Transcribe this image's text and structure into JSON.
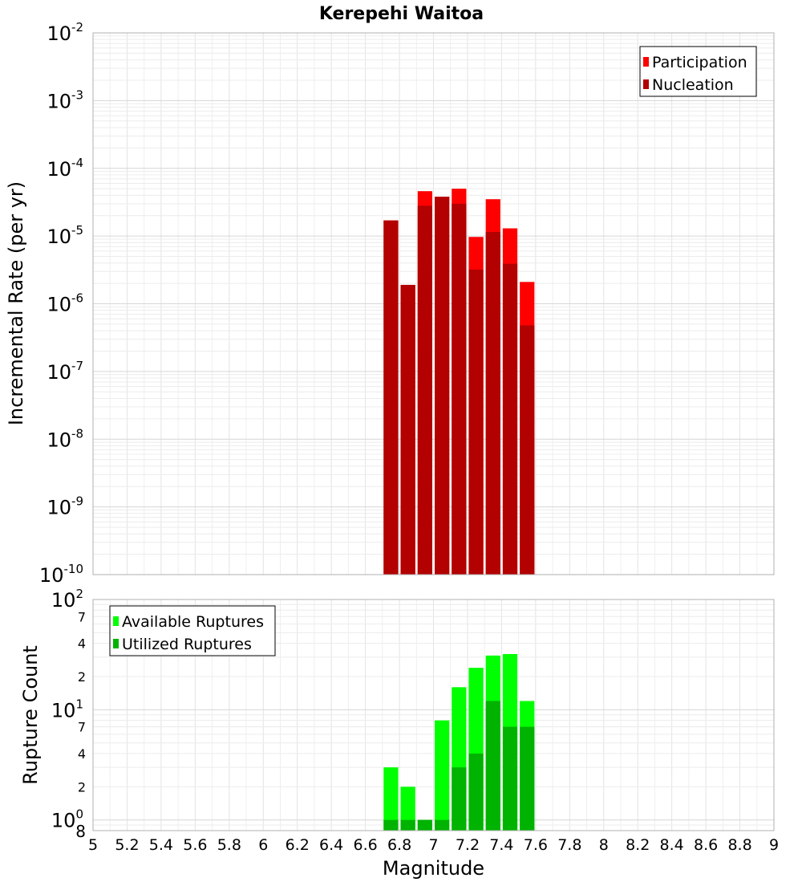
{
  "chart_data": [
    {
      "type": "bar",
      "title": "Kerepehi Waitoa",
      "xlabel": "",
      "ylabel": "Incremental Rate (per yr)",
      "yscale": "log",
      "ylim": [
        1e-10,
        0.01
      ],
      "xlim": [
        5,
        9
      ],
      "y_ticks": [
        {
          "base": "10",
          "exp": "-10"
        },
        {
          "base": "10",
          "exp": "-9"
        },
        {
          "base": "10",
          "exp": "-8"
        },
        {
          "base": "10",
          "exp": "-7"
        },
        {
          "base": "10",
          "exp": "-6"
        },
        {
          "base": "10",
          "exp": "-5"
        },
        {
          "base": "10",
          "exp": "-4"
        },
        {
          "base": "10",
          "exp": "-3"
        },
        {
          "base": "10",
          "exp": "-2"
        }
      ],
      "legend_position": "top-right",
      "bin_width": 0.1,
      "series": [
        {
          "name": "Participation",
          "color": "#ff0000",
          "x": [
            6.75,
            6.85,
            6.95,
            7.05,
            7.15,
            7.25,
            7.35,
            7.45,
            7.55
          ],
          "values": [
            1.7e-05,
            1.9e-06,
            4.6e-05,
            3.8e-05,
            5e-05,
            9.7e-06,
            3.5e-05,
            1.3e-05,
            2.1e-06
          ]
        },
        {
          "name": "Nucleation",
          "color": "#b30000",
          "x": [
            6.75,
            6.85,
            6.95,
            7.05,
            7.15,
            7.25,
            7.35,
            7.45,
            7.55
          ],
          "values": [
            1.7e-05,
            1.9e-06,
            2.8e-05,
            3.8e-05,
            3e-05,
            3.2e-06,
            1.15e-05,
            3.9e-06,
            4.8e-07
          ]
        }
      ]
    },
    {
      "type": "bar",
      "title": "",
      "xlabel": "Magnitude",
      "ylabel": "Rupture Count",
      "yscale": "log",
      "ylim": [
        0.8,
        100
      ],
      "xlim": [
        5,
        9
      ],
      "x_ticks": [
        "5",
        "5.2",
        "5.4",
        "5.6",
        "5.8",
        "6",
        "6.2",
        "6.4",
        "6.6",
        "6.8",
        "7",
        "7.2",
        "7.4",
        "7.6",
        "7.8",
        "8",
        "8.2",
        "8.4",
        "8.6",
        "8.8",
        "9"
      ],
      "y_major_ticks": [
        {
          "base": "10",
          "exp": "0"
        },
        {
          "base": "10",
          "exp": "1"
        },
        {
          "base": "10",
          "exp": "2"
        }
      ],
      "y_minor_labels": [
        {
          "label": "8",
          "value": 0.8
        },
        {
          "label": "2",
          "value": 2
        },
        {
          "label": "4",
          "value": 4
        },
        {
          "label": "7",
          "value": 7
        },
        {
          "label": "2",
          "value": 20
        },
        {
          "label": "4",
          "value": 40
        },
        {
          "label": "7",
          "value": 70
        }
      ],
      "legend_position": "top-left",
      "bin_width": 0.1,
      "series": [
        {
          "name": "Available Ruptures",
          "color": "#00ff00",
          "x": [
            6.75,
            6.85,
            6.95,
            7.05,
            7.15,
            7.25,
            7.35,
            7.45,
            7.55
          ],
          "values": [
            3,
            2,
            1,
            8,
            16,
            24,
            31,
            32,
            12
          ]
        },
        {
          "name": "Utilized Ruptures",
          "color": "#00b300",
          "x": [
            6.75,
            6.85,
            6.95,
            7.05,
            7.15,
            7.25,
            7.35,
            7.45,
            7.55
          ],
          "values": [
            1,
            1,
            1,
            1,
            3,
            4,
            12,
            7,
            7
          ]
        }
      ]
    }
  ]
}
